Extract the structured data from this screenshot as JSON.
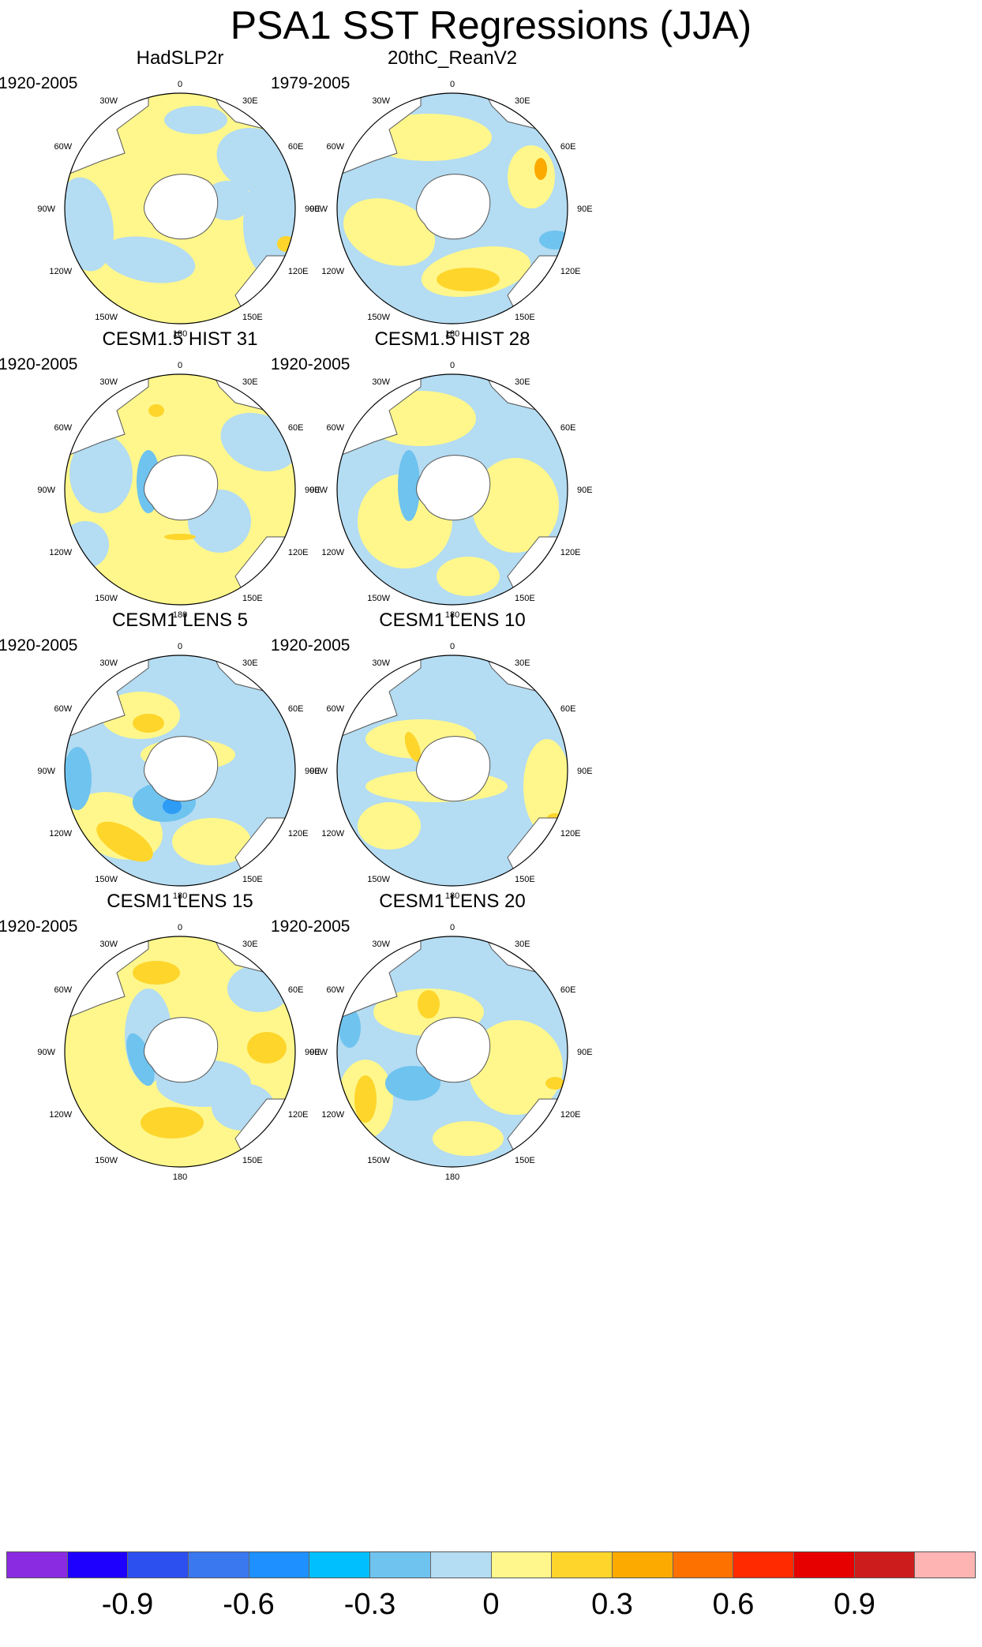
{
  "title": "PSA1 SST Regressions (JJA)",
  "colors": {
    "land": "#ffffff",
    "coast": "#555555",
    "neg_weak": "#b4dcf2",
    "neg_mid": "#6fc3ef",
    "neg_strong": "#2e9cf5",
    "pos_weak": "#fff78c",
    "pos_mid": "#fed52b",
    "pos_strong": "#fcaa00",
    "pos_max": "#fc7100"
  },
  "longitude_labels": [
    "0",
    "30E",
    "60E",
    "90E",
    "120E",
    "150E",
    "180",
    "150W",
    "120W",
    "90W",
    "60W",
    "30W"
  ],
  "panels": [
    {
      "title": "HadSLP2r",
      "period": "1920-2005",
      "pattern": "had"
    },
    {
      "title": "20thC_ReanV2",
      "period": "1979-2005",
      "pattern": "rean"
    },
    {
      "title": "CESM1.5 HIST 31",
      "period": "1920-2005",
      "pattern": "h31"
    },
    {
      "title": "CESM1.5 HIST 28",
      "period": "1920-2005",
      "pattern": "h28"
    },
    {
      "title": "CESM1 LENS 5",
      "period": "1920-2005",
      "pattern": "l5"
    },
    {
      "title": "CESM1 LENS 10",
      "period": "1920-2005",
      "pattern": "l10"
    },
    {
      "title": "CESM1 LENS 15",
      "period": "1920-2005",
      "pattern": "l15"
    },
    {
      "title": "CESM1 LENS 20",
      "period": "1920-2005",
      "pattern": "l20"
    }
  ],
  "colorbar": {
    "colors": [
      "#8a2be2",
      "#1e00ff",
      "#2c4ff0",
      "#3a78f0",
      "#1e90ff",
      "#00bfff",
      "#6fc3ef",
      "#b4dcf2",
      "#fff78c",
      "#fed52b",
      "#fcaa00",
      "#fc7100",
      "#ff2a00",
      "#e60000",
      "#cc1c1c",
      "#ffb4b4"
    ],
    "tick_labels": [
      "-0.9",
      "-0.6",
      "-0.3",
      "0",
      "0.3",
      "0.6",
      "0.9"
    ],
    "tick_values": [
      -0.9,
      -0.6,
      -0.3,
      0,
      0.3,
      0.6,
      0.9
    ],
    "min": -1.2,
    "max": 1.2
  }
}
